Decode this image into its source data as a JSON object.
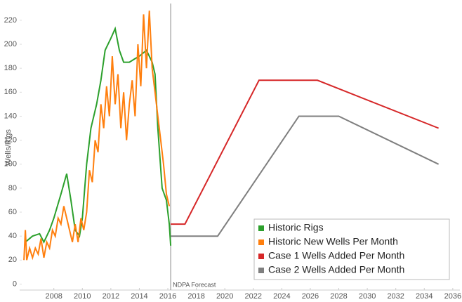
{
  "chart_data": {
    "type": "line",
    "y_label": "Wells/Rigs",
    "annotation": {
      "text": "NDPA Forecast",
      "x": 2016.2
    },
    "xlim": [
      2005.6,
      2036.5
    ],
    "xticks": [
      2008,
      2010,
      2012,
      2014,
      2016,
      2018,
      2020,
      2022,
      2024,
      2026,
      2028,
      2030,
      2032,
      2034,
      2036
    ],
    "ylim": [
      -5,
      234
    ],
    "yticks": [
      0,
      20,
      40,
      60,
      80,
      100,
      120,
      140,
      160,
      180,
      200,
      220
    ],
    "legend": "bottom-right",
    "series": [
      {
        "name": "Historic Rigs",
        "color": "#2ca02c",
        "x": [
          2006.0,
          2006.5,
          2007.0,
          2007.3,
          2007.7,
          2008.0,
          2008.5,
          2008.9,
          2009.2,
          2009.5,
          2009.8,
          2010.0,
          2010.3,
          2010.6,
          2011.0,
          2011.3,
          2011.6,
          2012.0,
          2012.3,
          2012.6,
          2012.9,
          2013.3,
          2013.7,
          2014.0,
          2014.5,
          2014.9,
          2015.1,
          2015.3,
          2015.6,
          2015.9,
          2016.1,
          2016.2
        ],
        "values": [
          35,
          40,
          42,
          35,
          45,
          55,
          75,
          92,
          70,
          45,
          40,
          55,
          100,
          130,
          150,
          170,
          195,
          205,
          213,
          195,
          185,
          185,
          188,
          190,
          195,
          185,
          175,
          130,
          80,
          70,
          50,
          32
        ]
      },
      {
        "name": "Historic New Wells Per Month",
        "color": "#ff7f0e",
        "x": [
          2005.9,
          2006.0,
          2006.1,
          2006.3,
          2006.5,
          2006.7,
          2006.9,
          2007.1,
          2007.3,
          2007.5,
          2007.7,
          2007.9,
          2008.1,
          2008.3,
          2008.5,
          2008.7,
          2008.9,
          2009.1,
          2009.3,
          2009.5,
          2009.7,
          2009.9,
          2010.1,
          2010.3,
          2010.5,
          2010.7,
          2010.9,
          2011.1,
          2011.3,
          2011.5,
          2011.7,
          2011.9,
          2012.1,
          2012.3,
          2012.5,
          2012.7,
          2012.9,
          2013.1,
          2013.3,
          2013.5,
          2013.7,
          2013.9,
          2014.1,
          2014.3,
          2014.5,
          2014.7,
          2014.9,
          2015.1,
          2015.3,
          2015.5,
          2015.7,
          2015.9,
          2016.1
        ],
        "values": [
          20,
          45,
          20,
          30,
          22,
          30,
          25,
          38,
          22,
          35,
          30,
          45,
          40,
          55,
          50,
          65,
          55,
          45,
          35,
          50,
          35,
          55,
          45,
          60,
          95,
          85,
          120,
          110,
          150,
          130,
          165,
          140,
          190,
          150,
          175,
          130,
          160,
          120,
          150,
          170,
          140,
          200,
          165,
          225,
          180,
          228,
          180,
          160,
          140,
          120,
          100,
          75,
          65
        ]
      },
      {
        "name": "Case 1 Wells Added Per Month",
        "color": "#d62728",
        "x": [
          2016.2,
          2017.2,
          2022.4,
          2026.5,
          2035.0
        ],
        "values": [
          50,
          50,
          170,
          170,
          130
        ]
      },
      {
        "name": "Case 2 Wells Added Per Month",
        "color": "#7f7f7f",
        "x": [
          2016.2,
          2019.5,
          2025.2,
          2028.0,
          2035.0
        ],
        "values": [
          40,
          40,
          140,
          140,
          100
        ]
      }
    ]
  }
}
